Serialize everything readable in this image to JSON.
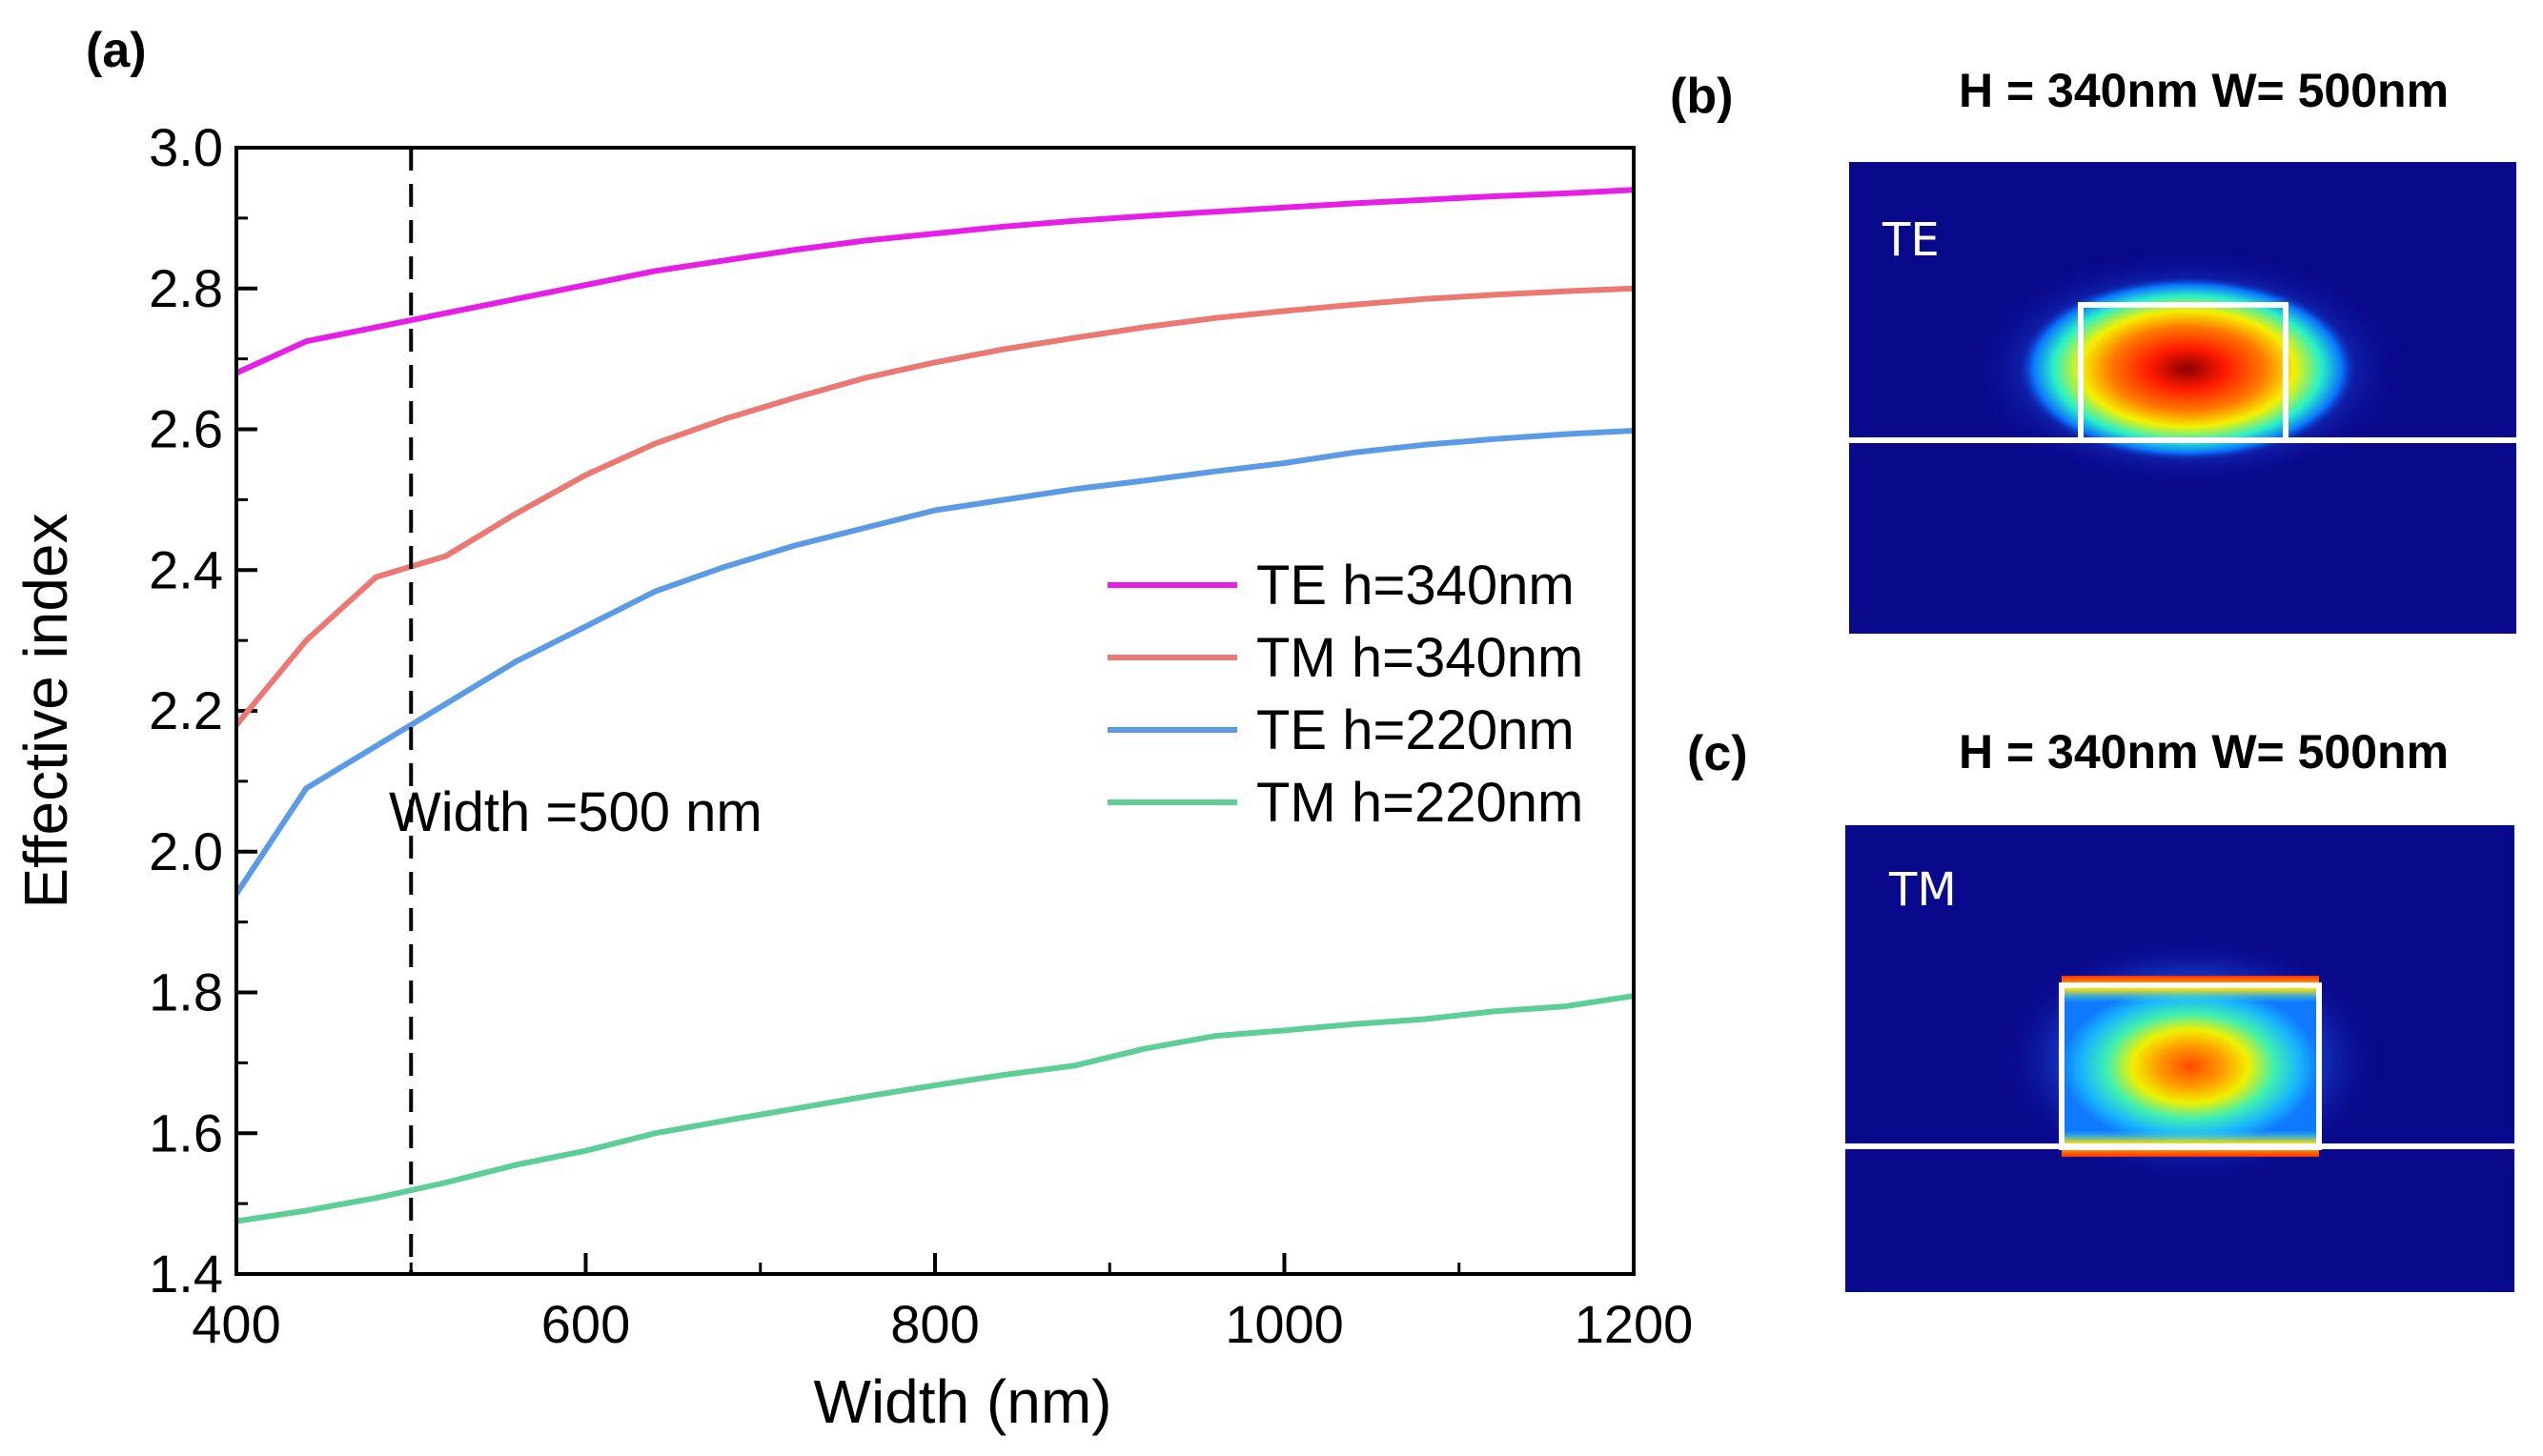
{
  "chart_data": [
    {
      "panel": "(a)",
      "type": "line",
      "xlabel": "Width (nm)",
      "ylabel": "Effective index",
      "xlim": [
        400,
        1200
      ],
      "ylim": [
        1.4,
        3.0
      ],
      "x_ticks": [
        400,
        600,
        800,
        1000,
        1200
      ],
      "y_ticks": [
        1.4,
        1.6,
        1.8,
        2.0,
        2.2,
        2.4,
        2.6,
        2.8,
        3.0
      ],
      "x_ticks_labels": [
        "400",
        "600",
        "800",
        "1000",
        "1200"
      ],
      "y_ticks_labels": [
        "1.4",
        "1.6",
        "1.8",
        "2.0",
        "2.2",
        "2.4",
        "2.6",
        "2.8",
        "3.0"
      ],
      "x": [
        400,
        440,
        480,
        520,
        560,
        600,
        640,
        680,
        720,
        760,
        800,
        840,
        880,
        920,
        960,
        1000,
        1040,
        1080,
        1120,
        1160,
        1200
      ],
      "series": [
        {
          "name": "TE h=340nm",
          "color": "#e61ee6",
          "values": [
            2.68,
            2.725,
            2.745,
            2.765,
            2.785,
            2.805,
            2.825,
            2.84,
            2.855,
            2.868,
            2.878,
            2.888,
            2.896,
            2.903,
            2.909,
            2.915,
            2.921,
            2.926,
            2.931,
            2.935,
            2.94
          ]
        },
        {
          "name": "TM h=340nm",
          "color": "#ec7873",
          "values": [
            2.18,
            2.3,
            2.39,
            2.42,
            2.48,
            2.535,
            2.58,
            2.615,
            2.645,
            2.673,
            2.695,
            2.714,
            2.73,
            2.745,
            2.758,
            2.768,
            2.777,
            2.785,
            2.791,
            2.796,
            2.8
          ]
        },
        {
          "name": "TE h=220nm",
          "color": "#5b9be6",
          "values": [
            1.94,
            2.09,
            2.15,
            2.21,
            2.27,
            2.32,
            2.37,
            2.405,
            2.435,
            2.46,
            2.485,
            2.5,
            2.515,
            2.527,
            2.54,
            2.552,
            2.567,
            2.578,
            2.586,
            2.593,
            2.598
          ]
        },
        {
          "name": "TM h=220nm",
          "color": "#5dce96",
          "values": [
            1.475,
            1.49,
            1.508,
            1.53,
            1.555,
            1.575,
            1.6,
            1.618,
            1.635,
            1.652,
            1.668,
            1.683,
            1.696,
            1.72,
            1.738,
            1.746,
            1.755,
            1.762,
            1.773,
            1.78,
            1.795
          ]
        }
      ],
      "vline": {
        "x": 500,
        "style": "dashed",
        "label": "Width =500 nm"
      },
      "legend_position": "center-right"
    },
    {
      "panel": "(b)",
      "type": "heatmap",
      "title": "H = 340nm W= 500nm",
      "mode": "TE"
    },
    {
      "panel": "(c)",
      "type": "heatmap",
      "title": "H = 340nm W= 500nm",
      "mode": "TM"
    }
  ]
}
